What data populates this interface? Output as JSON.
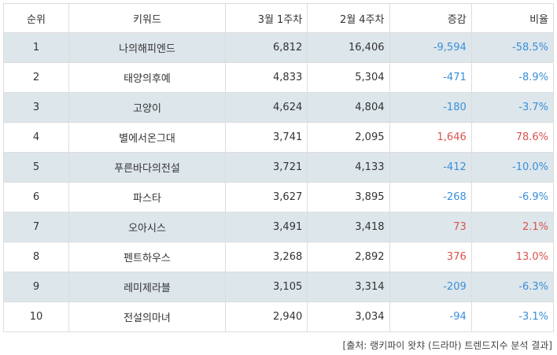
{
  "table": {
    "headers": [
      "순위",
      "키워드",
      "3월 1주차",
      "2월 4주차",
      "증감",
      "비율"
    ],
    "rows": [
      {
        "rank": "1",
        "keyword": "나의해피엔드",
        "week_mar1": "6,812",
        "week_feb4": "16,406",
        "change": "-9,594",
        "ratio": "-58.5%",
        "trend": "neg"
      },
      {
        "rank": "2",
        "keyword": "태양의후예",
        "week_mar1": "4,833",
        "week_feb4": "5,304",
        "change": "-471",
        "ratio": "-8.9%",
        "trend": "neg"
      },
      {
        "rank": "3",
        "keyword": "고양이",
        "week_mar1": "4,624",
        "week_feb4": "4,804",
        "change": "-180",
        "ratio": "-3.7%",
        "trend": "neg"
      },
      {
        "rank": "4",
        "keyword": "별에서온그대",
        "week_mar1": "3,741",
        "week_feb4": "2,095",
        "change": "1,646",
        "ratio": "78.6%",
        "trend": "pos"
      },
      {
        "rank": "5",
        "keyword": "푸른바다의전설",
        "week_mar1": "3,721",
        "week_feb4": "4,133",
        "change": "-412",
        "ratio": "-10.0%",
        "trend": "neg"
      },
      {
        "rank": "6",
        "keyword": "파스타",
        "week_mar1": "3,627",
        "week_feb4": "3,895",
        "change": "-268",
        "ratio": "-6.9%",
        "trend": "neg"
      },
      {
        "rank": "7",
        "keyword": "오아시스",
        "week_mar1": "3,491",
        "week_feb4": "3,418",
        "change": "73",
        "ratio": "2.1%",
        "trend": "pos"
      },
      {
        "rank": "8",
        "keyword": "펜트하우스",
        "week_mar1": "3,268",
        "week_feb4": "2,892",
        "change": "376",
        "ratio": "13.0%",
        "trend": "pos"
      },
      {
        "rank": "9",
        "keyword": "레미제라블",
        "week_mar1": "3,105",
        "week_feb4": "3,314",
        "change": "-209",
        "ratio": "-6.3%",
        "trend": "neg"
      },
      {
        "rank": "10",
        "keyword": "전설의마녀",
        "week_mar1": "2,940",
        "week_feb4": "3,034",
        "change": "-94",
        "ratio": "-3.1%",
        "trend": "neg"
      }
    ]
  },
  "colors": {
    "negative": "#3a8fd9",
    "positive": "#d9534f",
    "stripe": "#dde6eb"
  },
  "source": "[출처: 랭키파이 왓챠 (드라마) 트렌드지수 분석 결과]"
}
